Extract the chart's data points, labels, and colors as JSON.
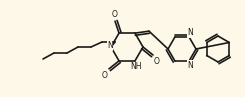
{
  "bg_color": "#fdf8e8",
  "bond_color": "#1a1a1a",
  "atom_color": "#1a1a1a",
  "bond_width": 1.2,
  "figsize": [
    2.45,
    0.97
  ],
  "dpi": 100,
  "xlim": [
    0,
    245
  ],
  "ylim": [
    0,
    97
  ],
  "font_size": 5.5
}
